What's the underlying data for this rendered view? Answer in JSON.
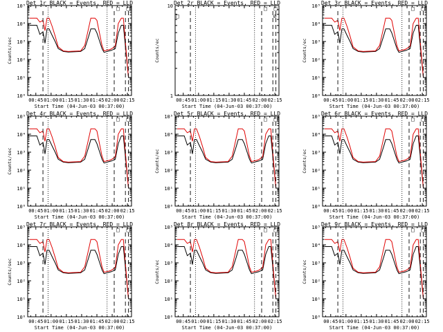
{
  "colors": {
    "events": "#000000",
    "lld": "#e00000",
    "axis": "#000000",
    "background": "#ffffff"
  },
  "x_ticks": [
    "00:45",
    "01:00",
    "01:15",
    "01:30",
    "01:45",
    "02:00",
    "02:15"
  ],
  "x_ticks_minutes": [
    45,
    60,
    75,
    90,
    105,
    120,
    135
  ],
  "xlim_minutes": [
    37,
    139
  ],
  "xlabel": "Start Time (04-Jun-03 00:37:00)",
  "ylabel_full": "Counts/sec",
  "ylabel_short": "Counts/ec",
  "log_ticks": [
    "10⁰",
    "10¹",
    "10²",
    "10³",
    "10⁴",
    "10⁵"
  ],
  "log_ylim_exponent": [
    0,
    5
  ],
  "empty_ylim": [
    1,
    10
  ],
  "empty_ticks": [
    "1",
    "10"
  ],
  "markers": {
    "dashed_minutes": [
      52,
      122,
      133,
      136
    ],
    "dotted_minutes": [
      57,
      115
    ],
    "box_symbol": "□",
    "slashed_symbol": "∅"
  },
  "chart_data": [
    {
      "type": "line",
      "title": "Det 1r BLACK = Events, RED = LLD",
      "scale": "log",
      "series": [
        {
          "name": "Events",
          "x_minutes": [
            39,
            46,
            49,
            52,
            54,
            56,
            58,
            61,
            64,
            67,
            72,
            77,
            89,
            93,
            97,
            99,
            103,
            105,
            110,
            112,
            117,
            119,
            123,
            126,
            129,
            131,
            136
          ],
          "y": [
            8000,
            8000,
            2500,
            3500,
            800,
            5000,
            5000,
            2200,
            1000,
            400,
            280,
            260,
            280,
            400,
            2000,
            5000,
            5000,
            3000,
            400,
            250,
            300,
            320,
            400,
            3000,
            8000,
            8000,
            10
          ]
        },
        {
          "name": "LLD",
          "x_minutes": [
            39,
            46,
            49,
            52,
            54,
            56,
            58,
            61,
            64,
            67,
            72,
            77,
            89,
            93,
            97,
            99,
            103,
            105,
            110,
            112,
            117,
            119,
            123,
            126,
            129,
            131,
            136
          ],
          "y": [
            20000,
            20000,
            12000,
            15000,
            4000,
            20000,
            20000,
            7000,
            2000,
            500,
            300,
            280,
            300,
            600,
            6000,
            20000,
            20000,
            15000,
            600,
            300,
            350,
            380,
            550,
            10000,
            20000,
            20000,
            10
          ]
        }
      ]
    },
    {
      "type": "line",
      "title": "Det 2r BLACK = Events, RED = LLD",
      "scale": "linear-empty",
      "series": []
    },
    {
      "type": "line",
      "title": "Det 3r BLACK = Events, RED = LLD",
      "scale": "log",
      "series": [
        {
          "name": "Events",
          "x_minutes": [
            39,
            46,
            49,
            52,
            54,
            56,
            58,
            61,
            64,
            67,
            72,
            77,
            89,
            93,
            97,
            99,
            103,
            105,
            110,
            112,
            117,
            119,
            123,
            126,
            129,
            131,
            136
          ],
          "y": [
            8000,
            8000,
            2500,
            3500,
            800,
            5000,
            5000,
            2200,
            1000,
            400,
            280,
            260,
            280,
            400,
            2000,
            5000,
            5000,
            3000,
            400,
            250,
            300,
            320,
            400,
            3000,
            8000,
            8000,
            10
          ]
        },
        {
          "name": "LLD",
          "x_minutes": [
            39,
            46,
            49,
            52,
            54,
            56,
            58,
            61,
            64,
            67,
            72,
            77,
            89,
            93,
            97,
            99,
            103,
            105,
            110,
            112,
            117,
            119,
            123,
            126,
            129,
            131,
            136
          ],
          "y": [
            20000,
            20000,
            12000,
            15000,
            4000,
            20000,
            20000,
            7000,
            2000,
            500,
            300,
            280,
            300,
            600,
            6000,
            20000,
            20000,
            15000,
            600,
            300,
            350,
            380,
            550,
            10000,
            20000,
            20000,
            10
          ]
        }
      ]
    },
    {
      "type": "line",
      "title": "Det 4r BLACK = Events, RED = LLD",
      "scale": "log",
      "series": [
        {
          "name": "Events",
          "x_minutes": [
            39,
            46,
            49,
            52,
            54,
            56,
            58,
            61,
            64,
            67,
            72,
            77,
            89,
            93,
            97,
            99,
            103,
            105,
            110,
            112,
            117,
            119,
            123,
            126,
            129,
            131,
            136
          ],
          "y": [
            8000,
            8000,
            2500,
            3500,
            800,
            5000,
            5000,
            2200,
            1000,
            400,
            280,
            260,
            280,
            400,
            2000,
            5000,
            5000,
            3000,
            400,
            250,
            300,
            320,
            400,
            3000,
            8000,
            8000,
            10
          ]
        },
        {
          "name": "LLD",
          "x_minutes": [
            39,
            46,
            49,
            52,
            54,
            56,
            58,
            61,
            64,
            67,
            72,
            77,
            89,
            93,
            97,
            99,
            103,
            105,
            110,
            112,
            117,
            119,
            123,
            126,
            129,
            131,
            136
          ],
          "y": [
            20000,
            20000,
            12000,
            15000,
            4000,
            20000,
            20000,
            7000,
            2000,
            500,
            300,
            280,
            300,
            600,
            6000,
            20000,
            20000,
            15000,
            600,
            300,
            350,
            380,
            550,
            10000,
            20000,
            20000,
            10
          ]
        }
      ]
    },
    {
      "type": "line",
      "title": "Det 5r BLACK = Events, RED = LLD",
      "scale": "log",
      "series": [
        {
          "name": "Events",
          "x_minutes": [
            39,
            46,
            49,
            52,
            54,
            56,
            58,
            61,
            64,
            67,
            72,
            77,
            89,
            93,
            97,
            99,
            103,
            105,
            110,
            112,
            117,
            119,
            123,
            126,
            129,
            131,
            136
          ],
          "y": [
            8000,
            8000,
            2500,
            3500,
            800,
            5000,
            5000,
            2200,
            1000,
            400,
            280,
            260,
            280,
            400,
            2000,
            5000,
            5000,
            3000,
            400,
            250,
            300,
            320,
            400,
            3000,
            8000,
            8000,
            10
          ]
        },
        {
          "name": "LLD",
          "x_minutes": [
            39,
            46,
            49,
            52,
            54,
            56,
            58,
            61,
            64,
            67,
            72,
            77,
            89,
            93,
            97,
            99,
            103,
            105,
            110,
            112,
            117,
            119,
            123,
            126,
            129,
            131,
            136
          ],
          "y": [
            20000,
            20000,
            12000,
            15000,
            4000,
            20000,
            20000,
            7000,
            2000,
            500,
            300,
            280,
            300,
            600,
            6000,
            20000,
            20000,
            15000,
            600,
            300,
            350,
            380,
            550,
            10000,
            20000,
            20000,
            10
          ]
        }
      ]
    },
    {
      "type": "line",
      "title": "Det 6r BLACK = Events, RED = LLD",
      "scale": "log",
      "series": [
        {
          "name": "Events",
          "x_minutes": [
            39,
            46,
            49,
            52,
            54,
            56,
            58,
            61,
            64,
            67,
            72,
            77,
            89,
            93,
            97,
            99,
            103,
            105,
            110,
            112,
            117,
            119,
            123,
            126,
            129,
            131,
            136
          ],
          "y": [
            8000,
            8000,
            2500,
            3500,
            800,
            5000,
            5000,
            2200,
            1000,
            400,
            280,
            260,
            280,
            400,
            2000,
            5000,
            5000,
            3000,
            400,
            250,
            300,
            320,
            400,
            3000,
            8000,
            8000,
            10
          ]
        },
        {
          "name": "LLD",
          "x_minutes": [
            39,
            46,
            49,
            52,
            54,
            56,
            58,
            61,
            64,
            67,
            72,
            77,
            89,
            93,
            97,
            99,
            103,
            105,
            110,
            112,
            117,
            119,
            123,
            126,
            129,
            131,
            136
          ],
          "y": [
            20000,
            20000,
            12000,
            15000,
            4000,
            20000,
            20000,
            7000,
            2000,
            500,
            300,
            280,
            300,
            600,
            6000,
            20000,
            20000,
            15000,
            600,
            300,
            350,
            380,
            550,
            10000,
            20000,
            20000,
            10
          ]
        }
      ]
    },
    {
      "type": "line",
      "title": "Det 7r BLACK = Events, RED = LLD",
      "scale": "log",
      "series": [
        {
          "name": "Events",
          "x_minutes": [
            39,
            46,
            49,
            52,
            54,
            56,
            58,
            61,
            64,
            67,
            72,
            77,
            89,
            93,
            97,
            99,
            103,
            105,
            110,
            112,
            117,
            119,
            123,
            126,
            129,
            131,
            136
          ],
          "y": [
            8000,
            8000,
            2500,
            3500,
            800,
            5000,
            5000,
            2200,
            1000,
            400,
            280,
            260,
            280,
            400,
            2000,
            5000,
            5000,
            3000,
            400,
            250,
            300,
            320,
            400,
            3000,
            8000,
            8000,
            10
          ]
        },
        {
          "name": "LLD",
          "x_minutes": [
            39,
            46,
            49,
            52,
            54,
            56,
            58,
            61,
            64,
            67,
            72,
            77,
            89,
            93,
            97,
            99,
            103,
            105,
            110,
            112,
            117,
            119,
            123,
            126,
            129,
            131,
            136
          ],
          "y": [
            20000,
            20000,
            12000,
            15000,
            4000,
            20000,
            20000,
            7000,
            2000,
            500,
            300,
            280,
            300,
            600,
            6000,
            20000,
            20000,
            15000,
            600,
            300,
            350,
            380,
            550,
            10000,
            20000,
            20000,
            10
          ]
        }
      ]
    },
    {
      "type": "line",
      "title": "Det 8r BLACK = Events, RED = LLD",
      "scale": "log",
      "series": [
        {
          "name": "Events",
          "x_minutes": [
            39,
            46,
            49,
            52,
            54,
            56,
            58,
            61,
            64,
            67,
            72,
            77,
            89,
            93,
            97,
            99,
            103,
            105,
            110,
            112,
            117,
            119,
            123,
            126,
            129,
            131,
            136
          ],
          "y": [
            8000,
            8000,
            2500,
            3500,
            800,
            5000,
            5000,
            2200,
            1000,
            400,
            280,
            260,
            280,
            400,
            2000,
            5000,
            5000,
            3000,
            400,
            250,
            300,
            320,
            400,
            3000,
            8000,
            8000,
            10
          ]
        },
        {
          "name": "LLD",
          "x_minutes": [
            39,
            46,
            49,
            52,
            54,
            56,
            58,
            61,
            64,
            67,
            72,
            77,
            89,
            93,
            97,
            99,
            103,
            105,
            110,
            112,
            117,
            119,
            123,
            126,
            129,
            131,
            136
          ],
          "y": [
            20000,
            20000,
            12000,
            15000,
            4000,
            20000,
            20000,
            7000,
            2000,
            500,
            300,
            280,
            300,
            600,
            6000,
            20000,
            20000,
            15000,
            600,
            300,
            350,
            380,
            550,
            10000,
            20000,
            20000,
            10
          ]
        }
      ]
    },
    {
      "type": "line",
      "title": "Det 9r BLACK = Events, RED = LLD",
      "scale": "log",
      "series": [
        {
          "name": "Events",
          "x_minutes": [
            39,
            46,
            49,
            52,
            54,
            56,
            58,
            61,
            64,
            67,
            72,
            77,
            89,
            93,
            97,
            99,
            103,
            105,
            110,
            112,
            117,
            119,
            123,
            126,
            129,
            131,
            136
          ],
          "y": [
            8000,
            8000,
            2500,
            3500,
            800,
            5000,
            5000,
            2200,
            1000,
            400,
            280,
            260,
            280,
            400,
            2000,
            5000,
            5000,
            3000,
            400,
            250,
            300,
            320,
            400,
            3000,
            8000,
            8000,
            10
          ]
        },
        {
          "name": "LLD",
          "x_minutes": [
            39,
            46,
            49,
            52,
            54,
            56,
            58,
            61,
            64,
            67,
            72,
            77,
            89,
            93,
            97,
            99,
            103,
            105,
            110,
            112,
            117,
            119,
            123,
            126,
            129,
            131,
            136
          ],
          "y": [
            20000,
            20000,
            12000,
            15000,
            4000,
            20000,
            20000,
            7000,
            2000,
            500,
            300,
            280,
            300,
            600,
            6000,
            20000,
            20000,
            15000,
            600,
            300,
            350,
            380,
            550,
            10000,
            20000,
            20000,
            10
          ]
        }
      ]
    }
  ]
}
